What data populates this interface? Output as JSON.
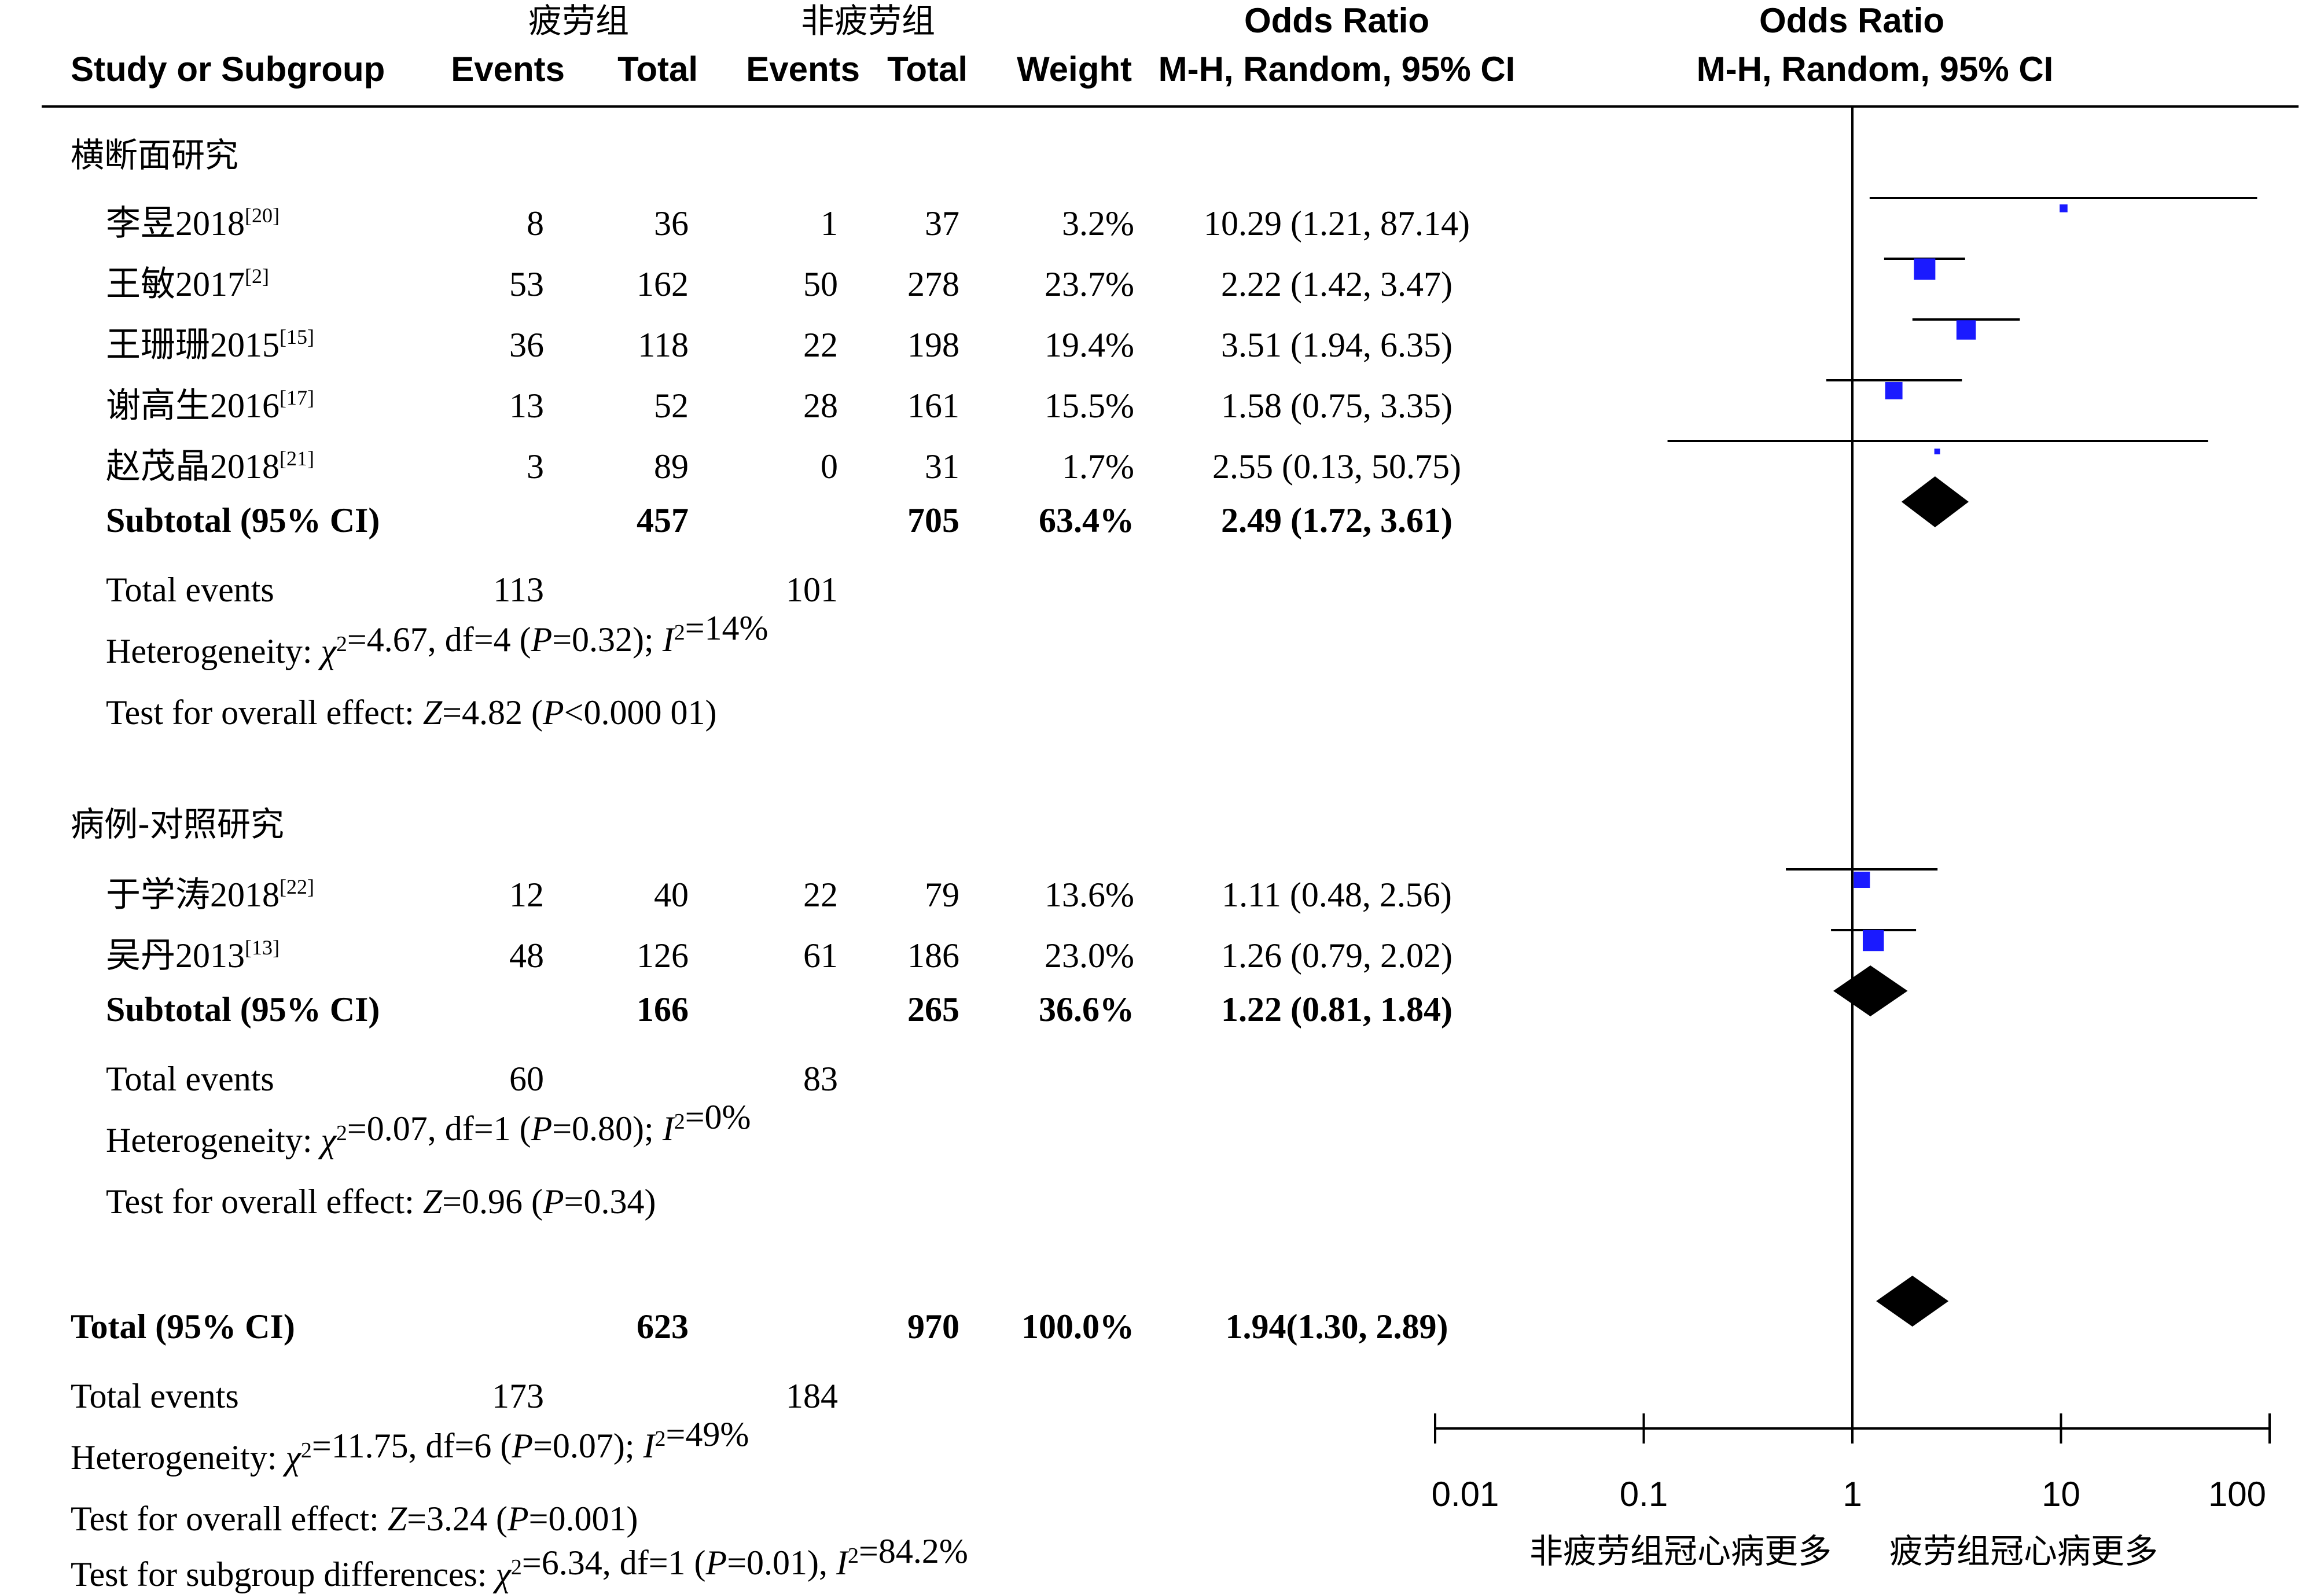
{
  "header": {
    "group1_name": "疲劳组",
    "group2_name": "非疲劳组",
    "study_col": "Study or Subgroup",
    "events_col": "Events",
    "total_col": "Total",
    "weight_col": "Weight",
    "or_title": "Odds Ratio",
    "or_method": "M-H, Random, 95% CI",
    "plot_title": "Odds Ratio",
    "plot_method": "M-H, Random, 95% CI"
  },
  "subgroups": [
    {
      "name": "横断面研究",
      "studies": [
        {
          "name": "李昱2018",
          "ref": "[20]",
          "e1": "8",
          "n1": "36",
          "e2": "1",
          "n2": "37",
          "weight": "3.2%",
          "ci_text": "10.29 (1.21, 87.14)",
          "or": 10.29,
          "lo": 1.21,
          "hi": 87.14,
          "w": 3.2
        },
        {
          "name": "王敏2017",
          "ref": "[2]",
          "e1": "53",
          "n1": "162",
          "e2": "50",
          "n2": "278",
          "weight": "23.7%",
          "ci_text": "2.22 (1.42, 3.47)",
          "or": 2.22,
          "lo": 1.42,
          "hi": 3.47,
          "w": 23.7
        },
        {
          "name": "王珊珊2015",
          "ref": "[15]",
          "e1": "36",
          "n1": "118",
          "e2": "22",
          "n2": "198",
          "weight": "19.4%",
          "ci_text": "3.51 (1.94, 6.35)",
          "or": 3.51,
          "lo": 1.94,
          "hi": 6.35,
          "w": 19.4
        },
        {
          "name": "谢高生2016",
          "ref": "[17]",
          "e1": "13",
          "n1": "52",
          "e2": "28",
          "n2": "161",
          "weight": "15.5%",
          "ci_text": "1.58 (0.75, 3.35)",
          "or": 1.58,
          "lo": 0.75,
          "hi": 3.35,
          "w": 15.5
        },
        {
          "name": "赵茂晶2018",
          "ref": "[21]",
          "e1": "3",
          "n1": "89",
          "e2": "0",
          "n2": "31",
          "weight": "1.7%",
          "ci_text": "2.55 (0.13, 50.75)",
          "or": 2.55,
          "lo": 0.13,
          "hi": 50.75,
          "w": 1.7
        }
      ],
      "subtotal": {
        "label": "Subtotal (95% CI)",
        "n1": "457",
        "n2": "705",
        "weight": "63.4%",
        "ci_text": "2.49 (1.72, 3.61)",
        "or": 2.49,
        "lo": 1.72,
        "hi": 3.61
      },
      "total_events": {
        "label": "Total events",
        "e1": "113",
        "e2": "101"
      },
      "heterogeneity": "Heterogeneity: χ²=4.67, df=4 (P=0.32); I²=14%",
      "overall": "Test for overall effect: Z=4.82 (P<0.000 01)"
    },
    {
      "name": "病例-对照研究",
      "studies": [
        {
          "name": "于学涛2018",
          "ref": "[22]",
          "e1": "12",
          "n1": "40",
          "e2": "22",
          "n2": "79",
          "weight": "13.6%",
          "ci_text": "1.11 (0.48, 2.56)",
          "or": 1.11,
          "lo": 0.48,
          "hi": 2.56,
          "w": 13.6
        },
        {
          "name": "吴丹2013",
          "ref": "[13]",
          "e1": "48",
          "n1": "126",
          "e2": "61",
          "n2": "186",
          "weight": "23.0%",
          "ci_text": "1.26 (0.79, 2.02)",
          "or": 1.26,
          "lo": 0.79,
          "hi": 2.02,
          "w": 23.0
        }
      ],
      "subtotal": {
        "label": "Subtotal (95% CI)",
        "n1": "166",
        "n2": "265",
        "weight": "36.6%",
        "ci_text": "1.22 (0.81, 1.84)",
        "or": 1.22,
        "lo": 0.81,
        "hi": 1.84
      },
      "total_events": {
        "label": "Total events",
        "e1": "60",
        "e2": "83"
      },
      "heterogeneity": "Heterogeneity: χ²=0.07, df=1 (P=0.80); I²=0%",
      "overall": "Test for overall effect: Z=0.96 (P=0.34)"
    }
  ],
  "total": {
    "label": "Total (95% CI)",
    "n1": "623",
    "n2": "970",
    "weight": "100.0%",
    "ci_text": "1.94(1.30, 2.89)",
    "or": 1.94,
    "lo": 1.3,
    "hi": 2.89
  },
  "total_events": {
    "label": "Total events",
    "e1": "173",
    "e2": "184"
  },
  "heterogeneity": "Heterogeneity: χ²=11.75, df=6 (P=0.07); I²=49%",
  "overall": "Test for overall effect: Z=3.24 (P=0.001)",
  "subgroup_diff": "Test for subgroup differences: χ²=6.34, df=1 (P=0.01), I²=84.2%",
  "chart_data": {
    "type": "forest",
    "x_scale": "log",
    "x_ticks": [
      "0.01",
      "0.1",
      "1",
      "10",
      "100"
    ],
    "x_tick_values": [
      0.01,
      0.1,
      1,
      10,
      100
    ],
    "favors_left": "非疲劳组冠心病更多",
    "favors_right": "疲劳组冠心病更多",
    "study_marker_color": "#1a1aff",
    "summary_marker_color": "#000000"
  }
}
